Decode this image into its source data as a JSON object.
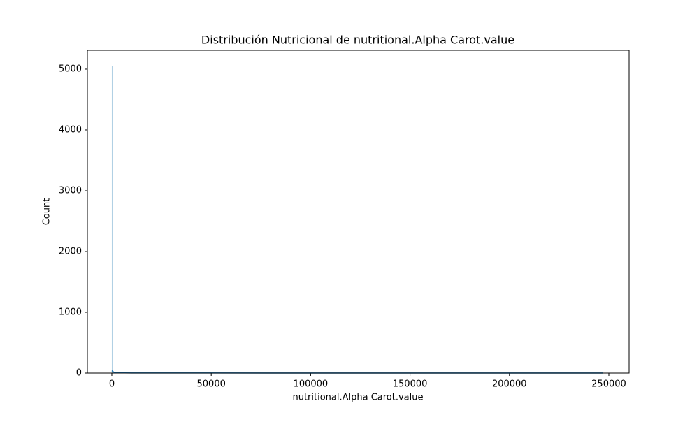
{
  "chart_data": {
    "type": "histogram",
    "title": "Distribución Nutricional de nutritional.Alpha Carot.value",
    "xlabel": "nutritional.Alpha Carot.value",
    "ylabel": "Count",
    "bins": [
      0,
      250,
      500,
      247000
    ],
    "counts": [
      5050,
      30,
      12
    ],
    "color": "#1f77b4",
    "kde": {
      "x": [
        0,
        1000,
        3000,
        10000,
        50000,
        100000,
        150000,
        200000,
        247000
      ],
      "y": [
        40,
        15,
        5,
        2,
        1,
        0,
        0,
        0,
        0
      ]
    },
    "xlim": [
      -12300,
      260200
    ],
    "ylim": [
      0,
      5310
    ],
    "xticks": [
      0,
      50000,
      100000,
      150000,
      200000,
      250000
    ],
    "yticks": [
      0,
      1000,
      2000,
      3000,
      4000,
      5000
    ]
  }
}
